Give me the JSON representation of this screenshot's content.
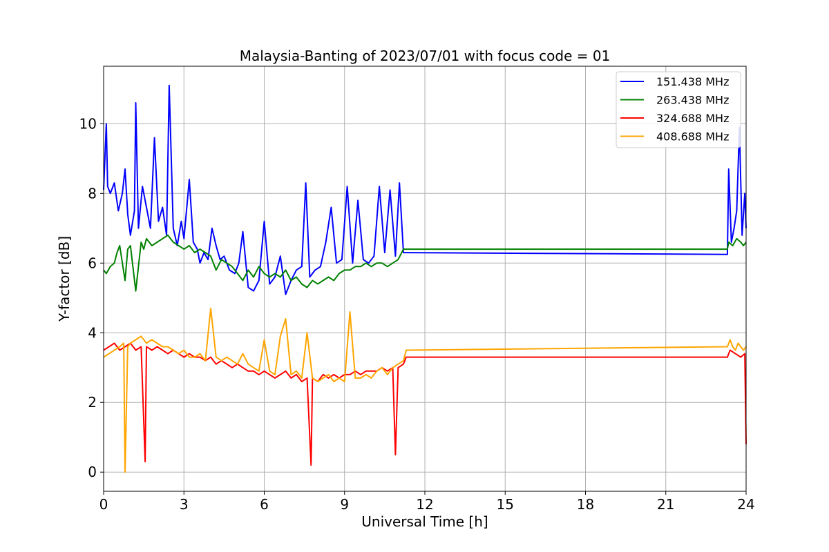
{
  "chart_data": {
    "type": "line",
    "title": "Malaysia-Banting of 2023/07/01 with focus code = 01",
    "xlabel": "Universal Time [h]",
    "ylabel": "Y-factor [dB]",
    "xlim": [
      0,
      24
    ],
    "ylim": [
      -0.55,
      11.65
    ],
    "xticks": [
      0,
      3,
      6,
      9,
      12,
      15,
      18,
      21,
      24
    ],
    "xtick_labels": [
      "0",
      "3",
      "6",
      "9",
      "12",
      "15",
      "18",
      "21",
      "24"
    ],
    "yticks": [
      0,
      2,
      4,
      6,
      8,
      10
    ],
    "ytick_labels": [
      "0",
      "2",
      "4",
      "6",
      "8",
      "10"
    ],
    "grid": true,
    "legend_position": "top-right",
    "series": [
      {
        "name": "151.438 MHz",
        "color": "#0000ff",
        "x": [
          0,
          0.1,
          0.15,
          0.25,
          0.4,
          0.55,
          0.7,
          0.8,
          0.9,
          1.0,
          1.15,
          1.2,
          1.3,
          1.45,
          1.6,
          1.75,
          1.9,
          2.05,
          2.2,
          2.35,
          2.45,
          2.6,
          2.75,
          2.9,
          3.0,
          3.2,
          3.35,
          3.5,
          3.6,
          3.75,
          3.9,
          4.05,
          4.2,
          4.35,
          4.5,
          4.7,
          4.9,
          5.05,
          5.2,
          5.4,
          5.6,
          5.8,
          6.0,
          6.2,
          6.4,
          6.6,
          6.8,
          7.0,
          7.2,
          7.4,
          7.55,
          7.7,
          7.9,
          8.1,
          8.3,
          8.5,
          8.7,
          8.9,
          9.1,
          9.3,
          9.5,
          9.7,
          9.9,
          10.1,
          10.3,
          10.5,
          10.7,
          10.9,
          11.05,
          11.2,
          11.3,
          23.3,
          23.35,
          23.45,
          23.55,
          23.65,
          23.75,
          23.85,
          23.95,
          24.0
        ],
        "y": [
          8.1,
          10.0,
          8.2,
          8.0,
          8.3,
          7.5,
          8.0,
          8.7,
          7.4,
          6.8,
          7.5,
          10.6,
          7.0,
          8.2,
          7.6,
          7.0,
          9.6,
          7.2,
          7.6,
          6.8,
          11.1,
          7.0,
          6.5,
          7.2,
          6.7,
          8.4,
          6.6,
          6.4,
          6.0,
          6.3,
          6.1,
          7.0,
          6.5,
          6.1,
          6.2,
          5.8,
          5.7,
          6.0,
          6.9,
          5.3,
          5.2,
          5.5,
          7.2,
          5.4,
          5.6,
          6.2,
          5.1,
          5.5,
          5.8,
          5.9,
          8.3,
          5.6,
          5.8,
          5.9,
          6.6,
          7.6,
          6.0,
          6.1,
          8.2,
          6.0,
          7.8,
          6.1,
          6.0,
          6.2,
          8.2,
          6.3,
          8.1,
          6.2,
          8.3,
          6.3,
          6.3,
          6.25,
          8.7,
          6.6,
          7.0,
          7.5,
          9.9,
          6.8,
          8.0,
          7.0
        ]
      },
      {
        "name": "263.438 MHz",
        "color": "#008000",
        "x": [
          0,
          0.1,
          0.25,
          0.4,
          0.5,
          0.6,
          0.8,
          0.9,
          1.0,
          1.2,
          1.4,
          1.5,
          1.6,
          1.8,
          2.0,
          2.2,
          2.4,
          2.6,
          2.8,
          3.0,
          3.2,
          3.4,
          3.6,
          3.8,
          4.0,
          4.2,
          4.4,
          4.6,
          4.8,
          5.0,
          5.2,
          5.4,
          5.6,
          5.8,
          6.0,
          6.2,
          6.4,
          6.6,
          6.8,
          7.0,
          7.2,
          7.4,
          7.6,
          7.8,
          8.0,
          8.2,
          8.4,
          8.6,
          8.8,
          9.0,
          9.2,
          9.4,
          9.6,
          9.8,
          10.0,
          10.2,
          10.4,
          10.6,
          10.8,
          11.0,
          11.2,
          11.3,
          23.3,
          23.35,
          23.5,
          23.65,
          23.8,
          23.9,
          24.0
        ],
        "y": [
          5.8,
          5.7,
          5.9,
          6.0,
          6.3,
          6.5,
          5.5,
          6.4,
          6.5,
          5.2,
          6.6,
          6.4,
          6.7,
          6.5,
          6.6,
          6.7,
          6.8,
          6.6,
          6.5,
          6.4,
          6.5,
          6.3,
          6.4,
          6.3,
          6.2,
          5.8,
          6.1,
          6.0,
          5.9,
          5.7,
          5.5,
          5.8,
          5.6,
          5.9,
          5.7,
          5.6,
          5.7,
          5.6,
          5.8,
          5.5,
          5.6,
          5.4,
          5.3,
          5.5,
          5.4,
          5.5,
          5.6,
          5.5,
          5.7,
          5.8,
          5.8,
          5.9,
          5.9,
          6.0,
          5.9,
          6.0,
          6.0,
          5.9,
          6.0,
          6.1,
          6.4,
          6.4,
          6.4,
          6.6,
          6.5,
          6.7,
          6.6,
          6.5,
          6.6
        ]
      },
      {
        "name": "324.688 MHz",
        "color": "#ff0000",
        "x": [
          0,
          0.2,
          0.4,
          0.6,
          0.8,
          1.0,
          1.2,
          1.4,
          1.55,
          1.6,
          1.8,
          2.0,
          2.2,
          2.4,
          2.6,
          2.8,
          3.0,
          3.2,
          3.4,
          3.6,
          3.8,
          4.0,
          4.2,
          4.4,
          4.6,
          4.8,
          5.0,
          5.2,
          5.4,
          5.6,
          5.8,
          6.0,
          6.2,
          6.4,
          6.6,
          6.8,
          7.0,
          7.2,
          7.4,
          7.6,
          7.75,
          7.8,
          8.0,
          8.2,
          8.4,
          8.6,
          8.8,
          9.0,
          9.2,
          9.4,
          9.6,
          9.8,
          10.0,
          10.2,
          10.4,
          10.6,
          10.8,
          10.9,
          11.0,
          11.2,
          11.3,
          23.3,
          23.4,
          23.6,
          23.8,
          23.95,
          24.0
        ],
        "y": [
          3.5,
          3.6,
          3.7,
          3.5,
          3.6,
          3.7,
          3.5,
          3.6,
          0.3,
          3.6,
          3.5,
          3.6,
          3.5,
          3.4,
          3.5,
          3.4,
          3.3,
          3.4,
          3.3,
          3.3,
          3.2,
          3.3,
          3.1,
          3.2,
          3.1,
          3.0,
          3.1,
          3.0,
          2.9,
          2.9,
          2.8,
          2.9,
          2.8,
          2.7,
          2.8,
          2.9,
          2.7,
          2.8,
          2.6,
          2.7,
          0.2,
          2.7,
          2.6,
          2.8,
          2.7,
          2.8,
          2.7,
          2.8,
          2.8,
          2.9,
          2.8,
          2.9,
          2.9,
          2.9,
          3.0,
          2.9,
          3.0,
          0.5,
          3.0,
          3.1,
          3.3,
          3.3,
          3.5,
          3.4,
          3.3,
          3.4,
          0.8
        ]
      },
      {
        "name": "408.688 MHz",
        "color": "#ffa500",
        "x": [
          0,
          0.2,
          0.4,
          0.6,
          0.75,
          0.8,
          0.9,
          1.0,
          1.2,
          1.4,
          1.6,
          1.8,
          2.0,
          2.2,
          2.4,
          2.6,
          2.8,
          3.0,
          3.2,
          3.4,
          3.6,
          3.8,
          4.0,
          4.2,
          4.4,
          4.6,
          4.8,
          5.0,
          5.2,
          5.4,
          5.6,
          5.8,
          6.0,
          6.2,
          6.4,
          6.6,
          6.8,
          7.0,
          7.2,
          7.4,
          7.6,
          7.8,
          8.0,
          8.2,
          8.4,
          8.6,
          8.8,
          9.0,
          9.2,
          9.4,
          9.6,
          9.8,
          10.0,
          10.2,
          10.4,
          10.6,
          10.8,
          11.0,
          11.2,
          11.3,
          23.3,
          23.4,
          23.5,
          23.6,
          23.7,
          23.8,
          23.9,
          24.0
        ],
        "y": [
          3.3,
          3.4,
          3.5,
          3.6,
          3.7,
          0.0,
          3.6,
          3.7,
          3.8,
          3.9,
          3.7,
          3.8,
          3.7,
          3.6,
          3.6,
          3.5,
          3.4,
          3.5,
          3.3,
          3.3,
          3.4,
          3.2,
          4.7,
          3.3,
          3.2,
          3.3,
          3.2,
          3.1,
          3.4,
          3.1,
          3.0,
          2.9,
          3.8,
          2.9,
          2.8,
          3.9,
          4.4,
          2.8,
          2.9,
          2.7,
          4.0,
          2.7,
          2.6,
          2.7,
          2.8,
          2.6,
          2.7,
          2.6,
          4.6,
          2.7,
          2.7,
          2.8,
          2.7,
          2.9,
          3.0,
          2.8,
          3.0,
          3.1,
          3.2,
          3.5,
          3.6,
          3.8,
          3.6,
          3.5,
          3.7,
          3.6,
          3.5,
          3.6
        ]
      }
    ]
  }
}
